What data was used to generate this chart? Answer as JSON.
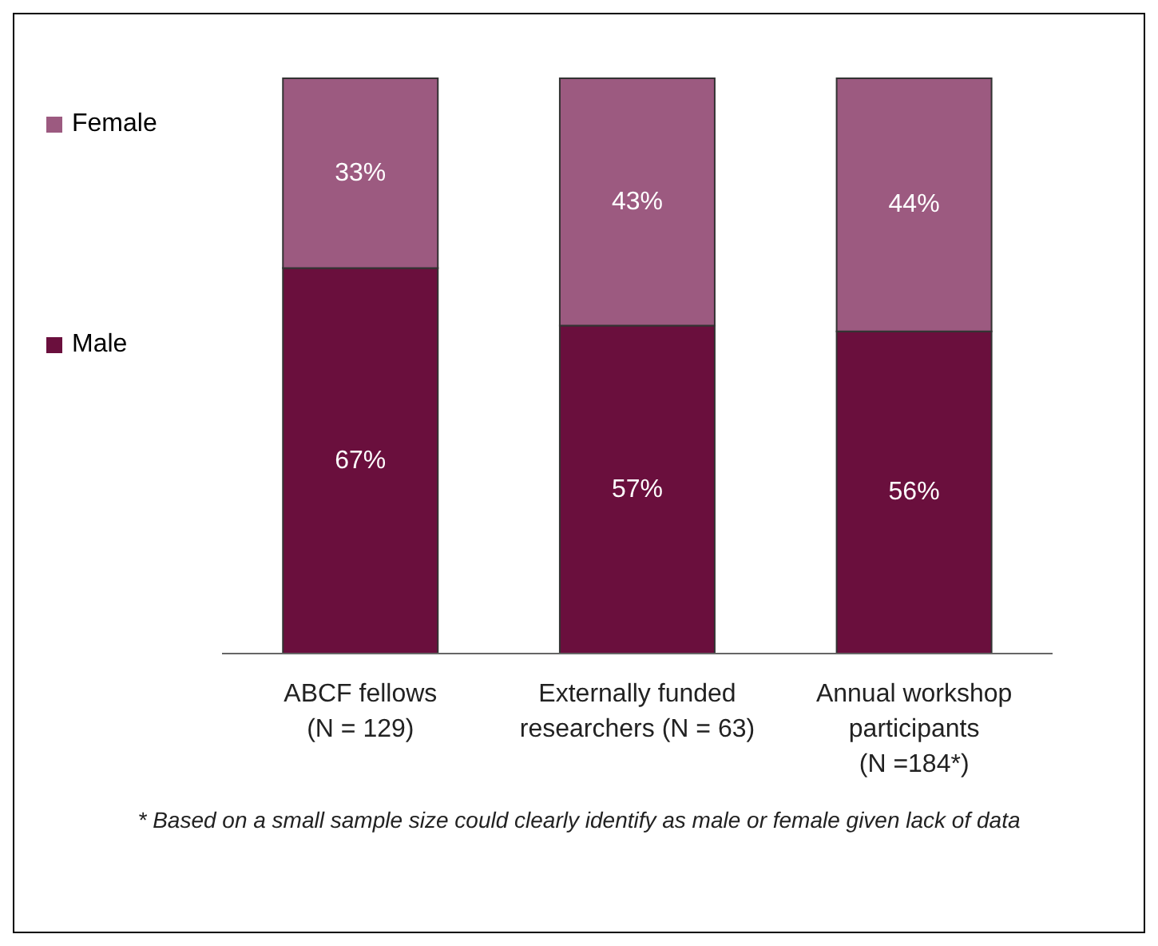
{
  "chart_data": {
    "type": "bar",
    "stacked": true,
    "categories": [
      "ABCF fellows\n(N = 129)",
      "Externally funded\nresearchers (N = 63)",
      "Annual workshop\nparticipants\n(N =184*)"
    ],
    "series": [
      {
        "name": "Male",
        "color": "#6a0f3d",
        "values": [
          67,
          57,
          56
        ],
        "value_labels": [
          "67%",
          "57%",
          "56%"
        ]
      },
      {
        "name": "Female",
        "color": "#9c5a80",
        "values": [
          33,
          43,
          44
        ],
        "value_labels": [
          "33%",
          "43%",
          "44%"
        ]
      }
    ],
    "legend": "left",
    "annotations": [
      "* Based on a small sample size could clearly identify as male or female given lack of data"
    ]
  }
}
